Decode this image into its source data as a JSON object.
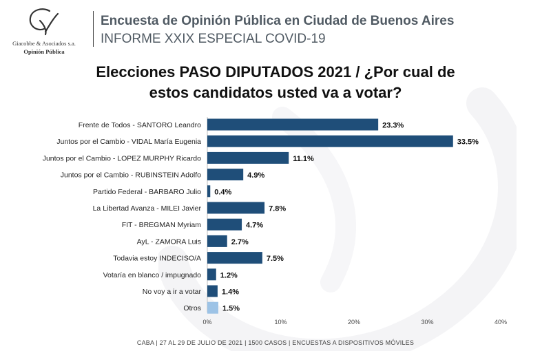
{
  "header": {
    "company_name": "Giacobbe & Asociados s.a.",
    "tagline": "Opinión Pública",
    "title": "Encuesta de Opinión Pública en Ciudad de Buenos Aires",
    "subtitle": "INFORME XXIX ESPECIAL COVID-19"
  },
  "chart_data": {
    "type": "bar",
    "orientation": "horizontal",
    "title_line1": "Elecciones PASO DIPUTADOS 2021 / ¿Por cual de",
    "title_line2": "estos candidatos usted va a votar?",
    "categories": [
      "Frente de Todos - SANTORO Leandro",
      "Juntos por el Cambio - VIDAL María Eugenia",
      "Juntos por el Cambio - LOPEZ MURPHY Ricardo",
      "Juntos por el Cambio - RUBINSTEIN Adolfo",
      "Partido Federal - BARBARO Julio",
      "La Libertad Avanza - MILEI Javier",
      "FIT - BREGMAN Myriam",
      "AyL - ZAMORA Luis",
      "Todavia estoy INDECISO/A",
      "Votaría en blanco / impugnado",
      "No voy a ir a votar",
      "Otros"
    ],
    "values": [
      23.3,
      33.5,
      11.1,
      4.9,
      0.4,
      7.8,
      4.7,
      2.7,
      7.5,
      1.2,
      1.4,
      1.5
    ],
    "value_labels": [
      "23.3%",
      "33.5%",
      "11.1%",
      "4.9%",
      "0.4%",
      "7.8%",
      "4.7%",
      "2.7%",
      "7.5%",
      "1.2%",
      "1.4%",
      "1.5%"
    ],
    "xlim": [
      0,
      40
    ],
    "x_ticks": [
      0,
      10,
      20,
      30,
      40
    ],
    "x_tick_labels": [
      "0%",
      "10%",
      "20%",
      "30%",
      "40%"
    ],
    "bar_color": "#1f4e79",
    "highlight_color": "#9dc3e6",
    "highlight_index": 11,
    "xlabel": "",
    "ylabel": ""
  },
  "footer": {
    "text": "CABA | 27 AL 29 DE JULIO DE 2021 | 1500 CASOS | ENCUESTAS A DISPOSITIVOS MÓVILES"
  }
}
